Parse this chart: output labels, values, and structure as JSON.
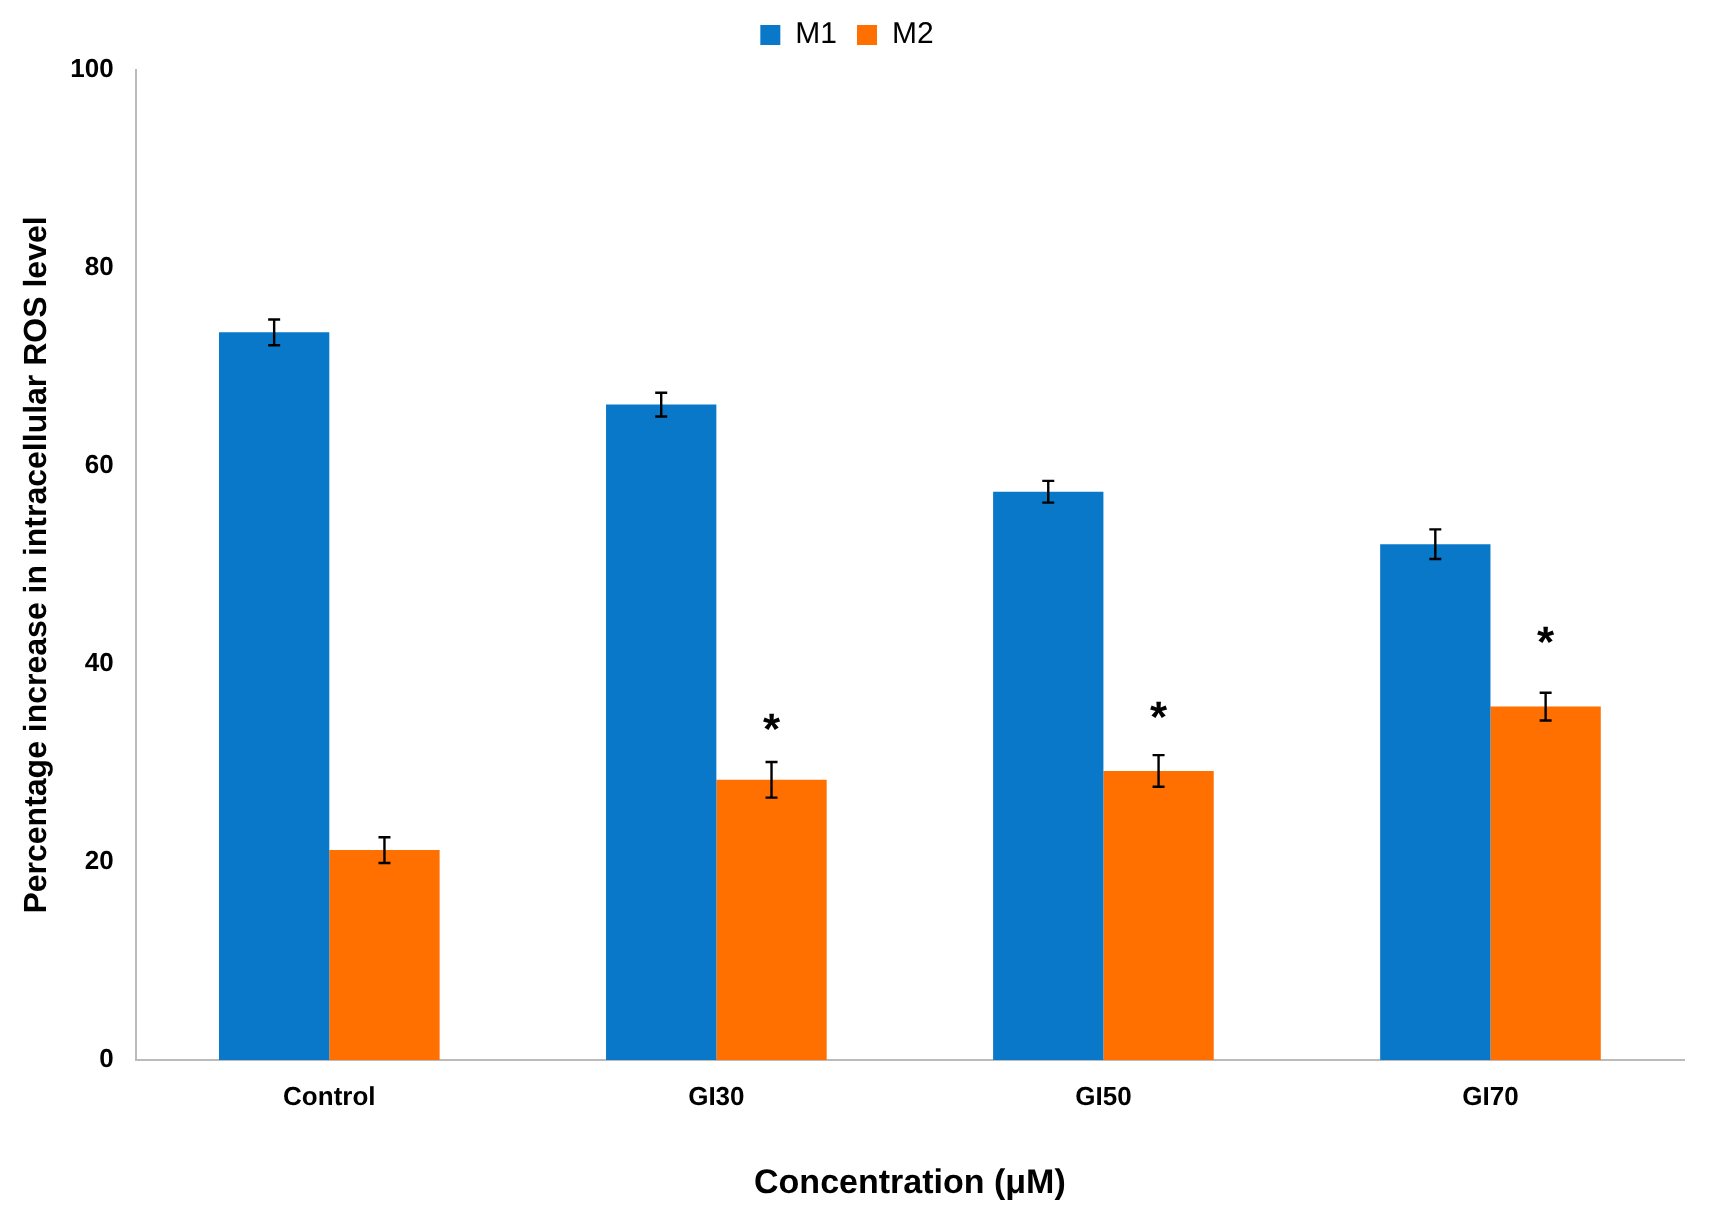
{
  "chart_data": {
    "type": "bar",
    "xlabel": "Concentration (μM)",
    "ylabel": "Percentage increase in intracellular ROS level",
    "categories": [
      "Control",
      "GI30",
      "GI50",
      "GI70"
    ],
    "series": [
      {
        "name": "M1",
        "color": "#0a78c8",
        "values": [
          73.5,
          66.2,
          57.4,
          52.1
        ],
        "errors": [
          1.3,
          1.2,
          1.1,
          1.5
        ]
      },
      {
        "name": "M2",
        "color": "#ff7000",
        "values": [
          21.2,
          28.3,
          29.2,
          35.7
        ],
        "errors": [
          1.3,
          1.8,
          1.6,
          1.4
        ]
      }
    ],
    "ylim": [
      0,
      100
    ],
    "yticks": [
      0,
      20,
      40,
      60,
      80,
      100
    ],
    "grid": false,
    "legend": "top",
    "annotations": [
      {
        "text": "*",
        "x": "GI30",
        "y": 34
      },
      {
        "text": "*",
        "x": "GI50",
        "y": 35.2
      },
      {
        "text": "*",
        "x": "GI70",
        "y": 42.7
      }
    ]
  }
}
